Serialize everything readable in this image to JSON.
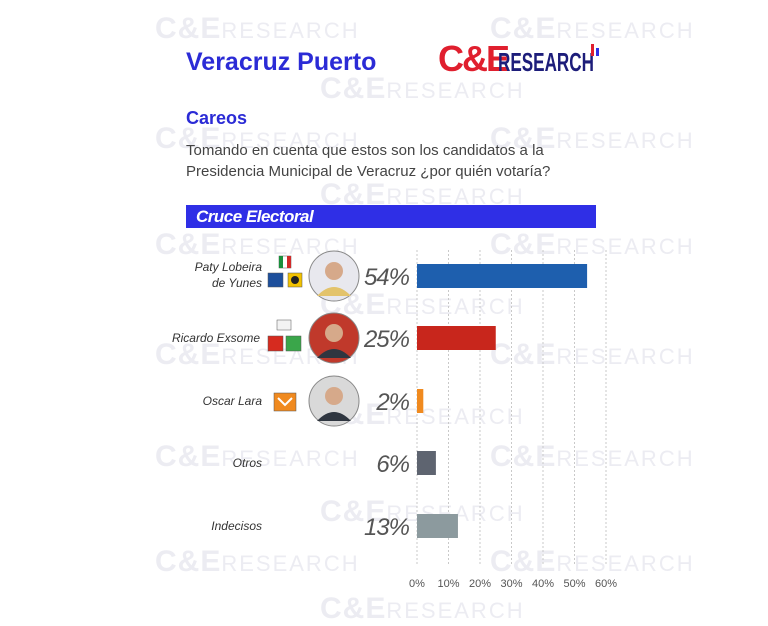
{
  "header": {
    "title": "Veracruz Puerto",
    "brand": "C&E RESEARCH",
    "brand_primary": "C&E",
    "brand_secondary": "RESEARCH",
    "section": "Careos",
    "question": "Tomando en cuenta que estos son los candidatos a la Presidencia Municipal de Veracruz ¿por quién votaría?",
    "banner": "Cruce Electoral"
  },
  "watermark_text": "C&E RESEARCH",
  "colors": {
    "title_blue": "#2b2bd6",
    "banner_blue": "#2f2fe6",
    "brand_red": "#e01f2e",
    "brand_blue": "#1d1d7a"
  },
  "chart_data": {
    "type": "bar",
    "orientation": "horizontal",
    "title": "Cruce Electoral",
    "categories": [
      "Paty Lobeira de Yunes",
      "Ricardo Exsome",
      "Oscar Lara",
      "Otros",
      "Indecisos"
    ],
    "category_lines": [
      [
        "Paty Lobeira",
        "de Yunes"
      ],
      [
        "Ricardo Exsome"
      ],
      [
        "Oscar Lara"
      ],
      [
        "Otros"
      ],
      [
        "Indecisos"
      ]
    ],
    "values": [
      54,
      25,
      2,
      6,
      13
    ],
    "value_labels": [
      "54%",
      "25%",
      "2%",
      "6%",
      "13%"
    ],
    "bar_colors": [
      "#1e5fae",
      "#c8261c",
      "#f08a1f",
      "#5e6470",
      "#8c9a9e"
    ],
    "party_icons": [
      [
        "pri-logo",
        "pan-logo",
        "prd-logo"
      ],
      [
        "party-logo",
        "pt-logo",
        "pvem-logo"
      ],
      [
        "mc-logo"
      ],
      [],
      []
    ],
    "photos": [
      "candidate-photo",
      "candidate-photo",
      "candidate-photo",
      null,
      null
    ],
    "xlim": [
      0,
      60
    ],
    "xticks": [
      0,
      10,
      20,
      30,
      40,
      50,
      60
    ],
    "xtick_labels": [
      "0%",
      "10%",
      "20%",
      "30%",
      "40%",
      "50%",
      "60%"
    ],
    "grid": "vertical dashed"
  }
}
